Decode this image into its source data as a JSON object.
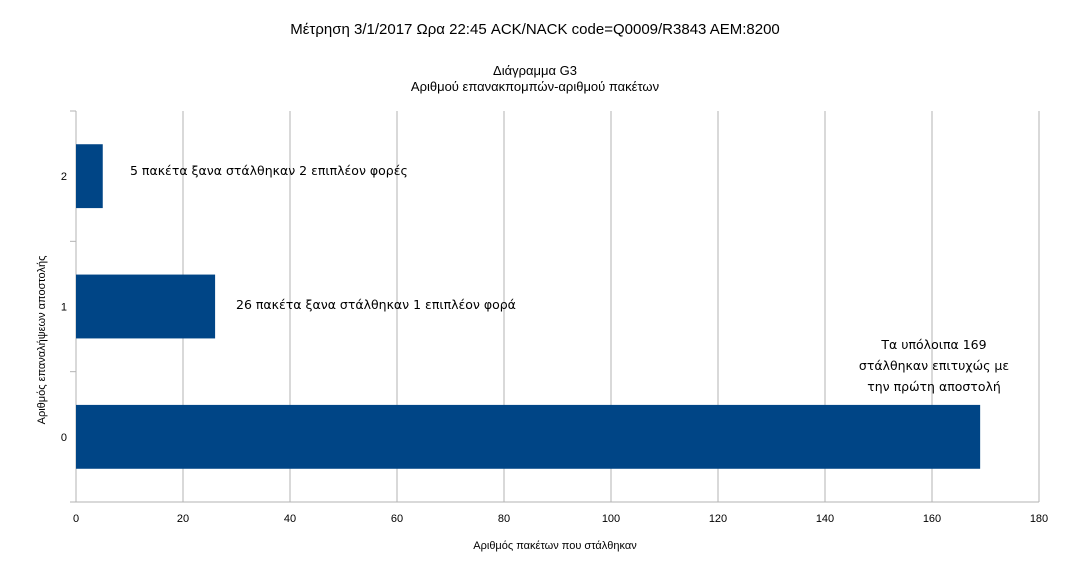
{
  "chart_data": {
    "type": "bar",
    "orientation": "horizontal",
    "title": "Μέτρηση 3/1/2017 Ωρα 22:45 ACK/NACK code=Q0009/R3843 AEM:8200",
    "subtitle_line1": "Διάγραμμα G3",
    "subtitle_line2": "Αριθμού επανακπομπών-αριθμού πακέτων",
    "xlabel": "Αριθμός πακέτων που στάλθηκαν",
    "ylabel": "Αριθμός επαναλήψεων αποστολής",
    "categories": [
      "0",
      "1",
      "2"
    ],
    "values": [
      169,
      26,
      5
    ],
    "xlim": [
      0,
      180
    ],
    "xticks": [
      0,
      20,
      40,
      60,
      80,
      100,
      120,
      140,
      160,
      180
    ],
    "grid": "vertical",
    "bar_color": "#004586",
    "annotations": [
      {
        "lines": [
          "5 πακέτα ξανα στάλθηκαν 2 επιπλέον φορές"
        ],
        "category": "2"
      },
      {
        "lines": [
          "26 πακέτα ξανα στάλθηκαν 1 επιπλέον φορά"
        ],
        "category": "1"
      },
      {
        "lines": [
          "Τα υπόλοιπα 169",
          "στάλθηκαν επιτυχώς με",
          "την πρώτη αποστολή"
        ],
        "category": "0"
      }
    ]
  }
}
